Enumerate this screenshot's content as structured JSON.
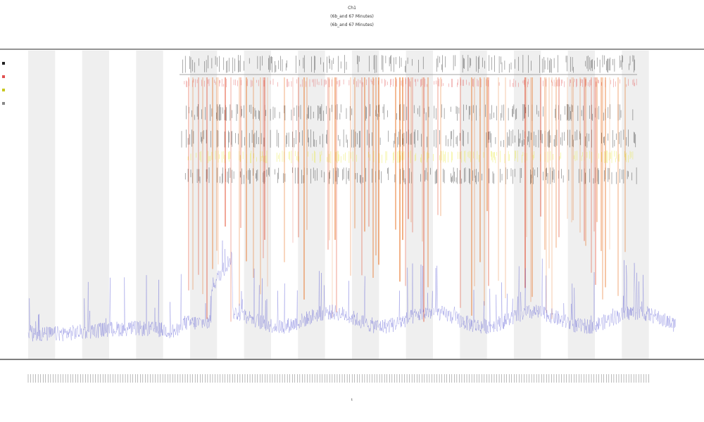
{
  "title": {
    "lines": [
      "Ch1",
      "(6b_and 67 Minutes)",
      "(6b_and 67 Minutes)"
    ]
  },
  "chart_data": {
    "type": "line",
    "xlabel": "t",
    "ylabel": "",
    "grid": false,
    "bands": {
      "count": 12,
      "shaded_start_index": 0
    },
    "x_tick_count": 250,
    "series": [
      {
        "name": "",
        "color": "#3a3acc",
        "kind": "signal-trace"
      }
    ],
    "marker_tracks": [
      {
        "name": "",
        "color": "#222222",
        "kind": "event-ticks"
      },
      {
        "name": "",
        "color": "#e05050",
        "kind": "event-ticks"
      },
      {
        "name": "",
        "color": "#222222",
        "kind": "event-ticks"
      },
      {
        "name": "",
        "color": "#222222",
        "kind": "event-ticks"
      },
      {
        "name": "",
        "color": "#e8e830",
        "kind": "event-ticks"
      },
      {
        "name": "",
        "color": "#222222",
        "kind": "event-ticks"
      }
    ],
    "activity_color": "#e87020",
    "legend": [
      {
        "label": "",
        "color": "#222222"
      },
      {
        "label": "",
        "color": "#e05050"
      },
      {
        "label": "",
        "color": "#c8c820"
      },
      {
        "label": "",
        "color": "#888888"
      }
    ]
  }
}
